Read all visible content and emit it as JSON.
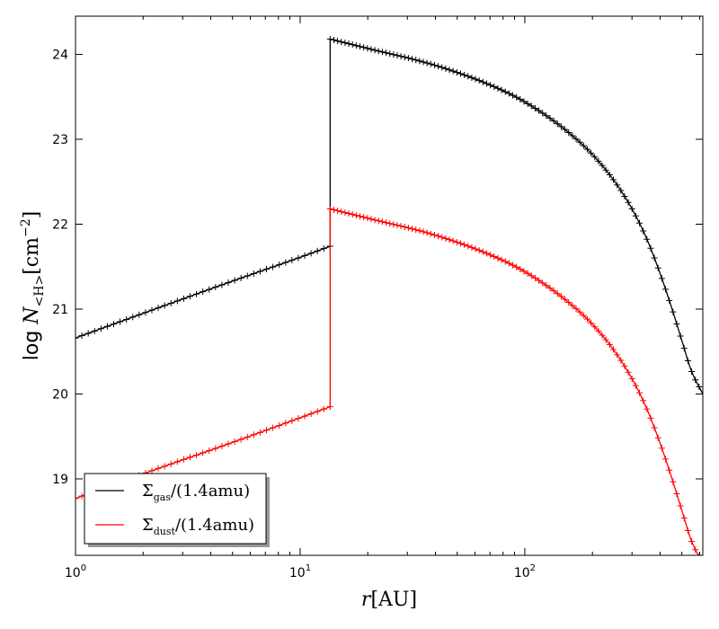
{
  "chart_data": {
    "type": "line",
    "title": "",
    "xlabel_var": "r",
    "xlabel_unit": "[AU]",
    "ylabel_prefix": "log ",
    "ylabel_var": "N",
    "ylabel_sub": "<H>",
    "ylabel_unit": "[cm",
    "ylabel_exp": "−2",
    "ylabel_close": "]",
    "xscale": "log",
    "xlim": [
      1,
      620
    ],
    "ylim": [
      18.1,
      24.45
    ],
    "xticks": [
      {
        "value": 1,
        "base": "10",
        "exp": "0"
      },
      {
        "value": 10,
        "base": "10",
        "exp": "1"
      },
      {
        "value": 100,
        "base": "10",
        "exp": "2"
      }
    ],
    "yticks": [
      19,
      20,
      21,
      22,
      23,
      24
    ],
    "grid": false,
    "legend_position": "lower-left",
    "series": [
      {
        "key": "gas",
        "legend_main": "Σ",
        "legend_sub": "gas",
        "legend_tail": "/(1.4amu)",
        "color": "#000000",
        "segments": [
          {
            "x": [
              1,
              2,
              5,
              10,
              13.6
            ],
            "y": [
              20.66,
              20.95,
              21.33,
              21.61,
              21.74
            ]
          },
          {
            "x": [
              13.6,
              20,
              40,
              70,
              100,
              150,
              200,
              250,
              300,
              350,
              400,
              450,
              500,
              550,
              620
            ],
            "y": [
              24.18,
              24.07,
              23.87,
              23.64,
              23.44,
              23.12,
              22.82,
              22.51,
              22.18,
              21.82,
              21.42,
              21.02,
              20.63,
              20.28,
              20.0
            ]
          }
        ]
      },
      {
        "key": "dust",
        "legend_main": "Σ",
        "legend_sub": "dust",
        "legend_tail": "/(1.4amu)",
        "color": "#ff0000",
        "segments": [
          {
            "x": [
              1,
              2,
              5,
              10,
              13.6
            ],
            "y": [
              18.77,
              19.06,
              19.43,
              19.72,
              19.85
            ]
          },
          {
            "x": [
              13.6,
              20,
              40,
              70,
              100,
              150,
              200,
              250,
              300,
              350,
              400,
              450,
              500,
              550,
              620
            ],
            "y": [
              22.18,
              22.07,
              21.87,
              21.64,
              21.44,
              21.12,
              20.82,
              20.51,
              20.18,
              19.82,
              19.42,
              19.02,
              18.63,
              18.28,
              18.0
            ]
          }
        ]
      }
    ]
  }
}
